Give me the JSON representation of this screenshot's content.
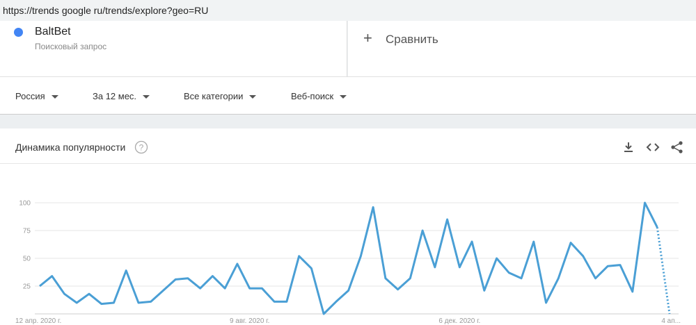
{
  "url": "https://trends google ru/trends/explore?geo=RU",
  "search_term": {
    "name": "BaltBet",
    "subtitle": "Поисковый запрос"
  },
  "compare": "Сравнить",
  "filters": [
    "Россия",
    "За 12 мес.",
    "Все категории",
    "Веб-поиск"
  ],
  "chart_data": {
    "type": "line",
    "title": "Динамика популярности",
    "categories": [
      "12 апр. 2020 г.",
      null,
      null,
      null,
      null,
      null,
      null,
      null,
      null,
      null,
      null,
      null,
      null,
      null,
      null,
      null,
      null,
      "9 авг. 2020 г.",
      null,
      null,
      null,
      null,
      null,
      null,
      null,
      null,
      null,
      null,
      null,
      null,
      null,
      null,
      null,
      null,
      "6 дек. 2020 г.",
      null,
      null,
      null,
      null,
      null,
      null,
      null,
      null,
      null,
      null,
      null,
      null,
      null,
      null,
      null,
      null,
      "4 ап..."
    ],
    "series": [
      {
        "name": "BaltBet",
        "color": "#4a9fd5",
        "values": [
          25,
          34,
          18,
          10,
          18,
          9,
          10,
          39,
          10,
          11,
          21,
          31,
          32,
          23,
          34,
          23,
          45,
          23,
          23,
          11,
          11,
          52,
          41,
          0,
          11,
          21,
          52,
          96,
          32,
          22,
          32,
          75,
          42,
          85,
          42,
          65,
          21,
          50,
          37,
          32,
          65,
          10,
          32,
          64,
          52,
          32,
          43,
          44,
          20,
          100,
          78,
          0
        ]
      }
    ],
    "last_point_partial": true,
    "ylim": [
      0,
      100
    ],
    "yticks": [
      25,
      50,
      75,
      100
    ],
    "grid": true
  }
}
